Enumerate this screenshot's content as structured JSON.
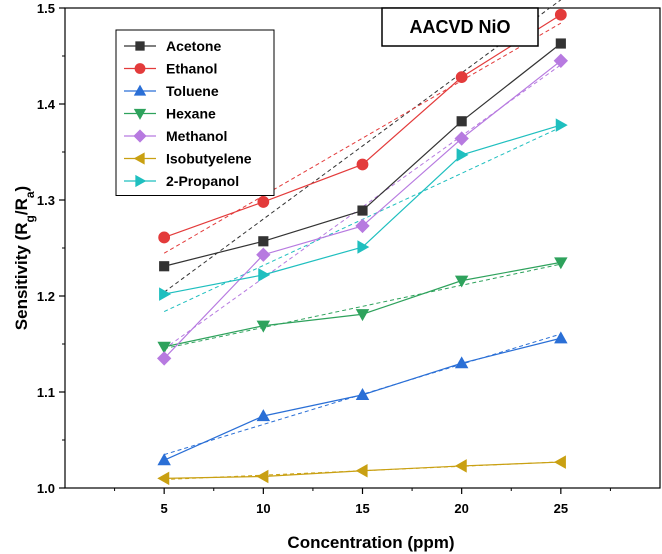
{
  "chart_data": {
    "type": "line",
    "title": "AACVD NiO",
    "xlabel": "Concentration (ppm)",
    "ylabel": "Sensitivity (Rg/Ra)",
    "ylabel_parts": {
      "main": "Sensitivity (R",
      "sub1": "g",
      "mid": "/R",
      "sub2": "a",
      "end": ")"
    },
    "x": [
      5,
      10,
      15,
      20,
      25
    ],
    "xlim": [
      0,
      30
    ],
    "ylim": [
      1.0,
      1.5
    ],
    "xticks": [
      "5",
      "10",
      "15",
      "20",
      "25"
    ],
    "yticks": [
      "1.0",
      "1.1",
      "1.2",
      "1.3",
      "1.4",
      "1.5"
    ],
    "legend_position": "top-left",
    "grid": false,
    "series": [
      {
        "name": "Acetone",
        "color": "#333333",
        "marker": "square",
        "values": [
          1.231,
          1.257,
          1.289,
          1.382,
          1.463
        ],
        "fit": [
          1.204,
          1.5085
        ]
      },
      {
        "name": "Ethanol",
        "color": "#e33b3b",
        "marker": "circle",
        "values": [
          1.261,
          1.298,
          1.337,
          1.428,
          1.493
        ],
        "fit": [
          1.2446,
          1.4842
        ]
      },
      {
        "name": "Toluene",
        "color": "#2a6fd6",
        "marker": "triangle-up",
        "values": [
          1.029,
          1.075,
          1.097,
          1.13,
          1.156
        ],
        "fit": [
          1.0348,
          1.1604
        ]
      },
      {
        "name": "Hexane",
        "color": "#2ea25c",
        "marker": "triangle-down",
        "values": [
          1.147,
          1.169,
          1.181,
          1.216,
          1.235
        ],
        "fit": [
          1.1452,
          1.2332
        ]
      },
      {
        "name": "Methanol",
        "color": "#b77ae0",
        "marker": "diamond",
        "values": [
          1.135,
          1.243,
          1.273,
          1.364,
          1.445
        ],
        "fit": [
          1.1448,
          1.4408
        ]
      },
      {
        "name": "Isobutyelene",
        "color": "#c9a012",
        "marker": "triangle-left",
        "values": [
          1.01,
          1.012,
          1.018,
          1.023,
          1.027
        ],
        "fit": [
          1.0088,
          1.0272
        ]
      },
      {
        "name": "2-Propanol",
        "color": "#1fbfbf",
        "marker": "triangle-right",
        "values": [
          1.202,
          1.222,
          1.251,
          1.347,
          1.378
        ],
        "fit": [
          1.1838,
          1.3758
        ]
      }
    ]
  }
}
